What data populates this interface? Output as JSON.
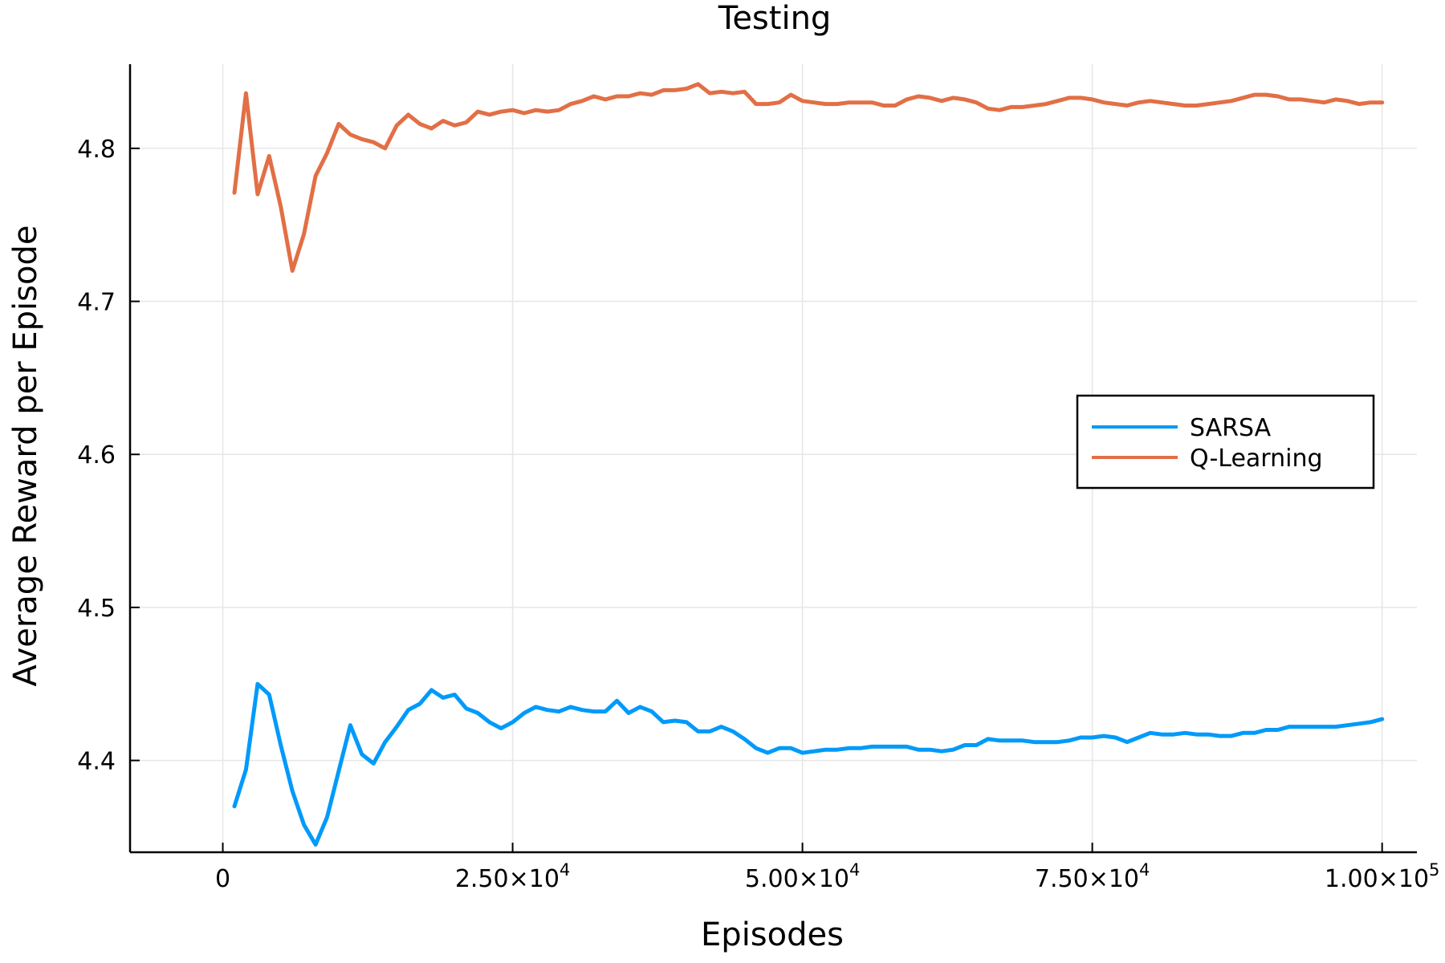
{
  "chart_data": {
    "type": "line",
    "title": "Testing",
    "xlabel": "Episodes",
    "ylabel": "Average Reward per Episode",
    "xlim": [
      -8000,
      103000
    ],
    "ylim": [
      4.34,
      4.855
    ],
    "x_ticks": [
      {
        "value": 0,
        "mantissa": "0",
        "exponent": ""
      },
      {
        "value": 25000,
        "mantissa": "2.50×10",
        "exponent": "4"
      },
      {
        "value": 50000,
        "mantissa": "5.00×10",
        "exponent": "4"
      },
      {
        "value": 75000,
        "mantissa": "7.50×10",
        "exponent": "4"
      },
      {
        "value": 100000,
        "mantissa": "1.00×10",
        "exponent": "5"
      }
    ],
    "y_ticks": [
      {
        "value": 4.4,
        "label": "4.4"
      },
      {
        "value": 4.5,
        "label": "4.5"
      },
      {
        "value": 4.6,
        "label": "4.6"
      },
      {
        "value": 4.7,
        "label": "4.7"
      },
      {
        "value": 4.8,
        "label": "4.8"
      }
    ],
    "grid": true,
    "legend_position": "right",
    "x": [
      1000,
      2000,
      3000,
      4000,
      5000,
      6000,
      7000,
      8000,
      9000,
      10000,
      11000,
      12000,
      13000,
      14000,
      15000,
      16000,
      17000,
      18000,
      19000,
      20000,
      21000,
      22000,
      23000,
      24000,
      25000,
      26000,
      27000,
      28000,
      29000,
      30000,
      31000,
      32000,
      33000,
      34000,
      35000,
      36000,
      37000,
      38000,
      39000,
      40000,
      41000,
      42000,
      43000,
      44000,
      45000,
      46000,
      47000,
      48000,
      49000,
      50000,
      51000,
      52000,
      53000,
      54000,
      55000,
      56000,
      57000,
      58000,
      59000,
      60000,
      61000,
      62000,
      63000,
      64000,
      65000,
      66000,
      67000,
      68000,
      69000,
      70000,
      71000,
      72000,
      73000,
      74000,
      75000,
      76000,
      77000,
      78000,
      79000,
      80000,
      81000,
      82000,
      83000,
      84000,
      85000,
      86000,
      87000,
      88000,
      89000,
      90000,
      91000,
      92000,
      93000,
      94000,
      95000,
      96000,
      97000,
      98000,
      99000,
      100000
    ],
    "series": [
      {
        "name": "SARSA",
        "color": "#009AFA",
        "values": [
          4.37,
          4.394,
          4.45,
          4.443,
          4.41,
          4.38,
          4.358,
          4.345,
          4.363,
          4.393,
          4.423,
          4.404,
          4.398,
          4.412,
          4.422,
          4.433,
          4.437,
          4.446,
          4.441,
          4.443,
          4.434,
          4.431,
          4.425,
          4.421,
          4.425,
          4.431,
          4.435,
          4.433,
          4.432,
          4.435,
          4.433,
          4.432,
          4.432,
          4.439,
          4.431,
          4.435,
          4.432,
          4.425,
          4.426,
          4.425,
          4.419,
          4.419,
          4.422,
          4.419,
          4.414,
          4.408,
          4.405,
          4.408,
          4.408,
          4.405,
          4.406,
          4.407,
          4.407,
          4.408,
          4.408,
          4.409,
          4.409,
          4.409,
          4.409,
          4.407,
          4.407,
          4.406,
          4.407,
          4.41,
          4.41,
          4.414,
          4.413,
          4.413,
          4.413,
          4.412,
          4.412,
          4.412,
          4.413,
          4.415,
          4.415,
          4.416,
          4.415,
          4.412,
          4.415,
          4.418,
          4.417,
          4.417,
          4.418,
          4.417,
          4.417,
          4.416,
          4.416,
          4.418,
          4.418,
          4.42,
          4.42,
          4.422,
          4.422,
          4.422,
          4.422,
          4.422,
          4.423,
          4.424,
          4.425,
          4.427
        ]
      },
      {
        "name": "Q-Learning",
        "color": "#E26F46",
        "values": [
          4.771,
          4.836,
          4.77,
          4.795,
          4.762,
          4.72,
          4.744,
          4.782,
          4.797,
          4.816,
          4.809,
          4.806,
          4.804,
          4.8,
          4.815,
          4.822,
          4.816,
          4.813,
          4.818,
          4.815,
          4.817,
          4.824,
          4.822,
          4.824,
          4.825,
          4.823,
          4.825,
          4.824,
          4.825,
          4.829,
          4.831,
          4.834,
          4.832,
          4.834,
          4.834,
          4.836,
          4.835,
          4.838,
          4.838,
          4.839,
          4.842,
          4.836,
          4.837,
          4.836,
          4.837,
          4.829,
          4.829,
          4.83,
          4.835,
          4.831,
          4.83,
          4.829,
          4.829,
          4.83,
          4.83,
          4.83,
          4.828,
          4.828,
          4.832,
          4.834,
          4.833,
          4.831,
          4.833,
          4.832,
          4.83,
          4.826,
          4.825,
          4.827,
          4.827,
          4.828,
          4.829,
          4.831,
          4.833,
          4.833,
          4.832,
          4.83,
          4.829,
          4.828,
          4.83,
          4.831,
          4.83,
          4.829,
          4.828,
          4.828,
          4.829,
          4.83,
          4.831,
          4.833,
          4.835,
          4.835,
          4.834,
          4.832,
          4.832,
          4.831,
          4.83,
          4.832,
          4.831,
          4.829,
          4.83,
          4.83
        ]
      }
    ]
  }
}
